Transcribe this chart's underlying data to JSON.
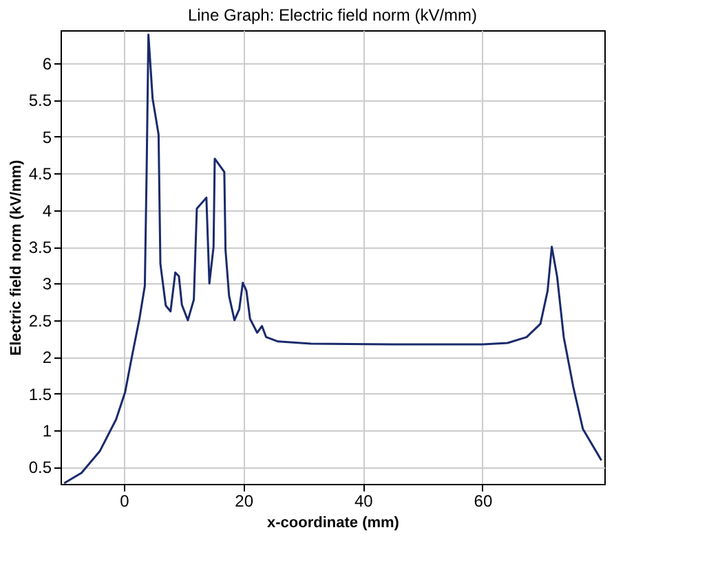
{
  "chart_data": {
    "type": "line",
    "title": "Line Graph: Electric field norm (kV/mm)",
    "xlabel": "x-coordinate (mm)",
    "ylabel": "Electric field norm (kV/mm)",
    "xlim": [
      -10.6,
      80.4
    ],
    "ylim": [
      0.27,
      6.45
    ],
    "xticks": [
      0,
      20,
      40,
      60
    ],
    "yticks": [
      0.5,
      1,
      1.5,
      2,
      2.5,
      3,
      3.5,
      4,
      4.5,
      5,
      5.5,
      6
    ],
    "grid": true,
    "line_style": "solid",
    "series": [
      {
        "color": "#1a2a6c",
        "x": [
          -10,
          -7.1,
          -4,
          -1.3,
          0.2,
          1.4,
          2.6,
          3.5,
          3.8,
          4.1,
          4.8,
          5.8,
          6.1,
          7.0,
          7.8,
          8.6,
          9.2,
          9.7,
          10.7,
          11.7,
          12.2,
          13.6,
          13.8,
          14.3,
          15.0,
          15.2,
          16.8,
          17.0,
          17.6,
          18.5,
          19.3,
          19.9,
          20.5,
          21.1,
          22.3,
          23.1,
          23.8,
          25.8,
          31.3,
          45,
          60,
          64.2,
          67.4,
          69.7,
          70.9,
          71.6,
          72.5,
          73.6,
          75.2,
          76.8,
          79.9
        ],
        "values": [
          0.28,
          0.42,
          0.72,
          1.15,
          1.52,
          2.03,
          2.52,
          2.97,
          4.52,
          6.39,
          5.52,
          5.03,
          3.27,
          2.7,
          2.62,
          3.15,
          3.1,
          2.71,
          2.5,
          2.78,
          4.02,
          4.15,
          4.17,
          3.0,
          3.5,
          4.7,
          4.52,
          3.46,
          2.83,
          2.5,
          2.65,
          3.01,
          2.9,
          2.52,
          2.33,
          2.42,
          2.27,
          2.21,
          2.18,
          2.17,
          2.17,
          2.19,
          2.27,
          2.45,
          2.9,
          3.5,
          3.09,
          2.27,
          1.59,
          1.02,
          0.59
        ]
      }
    ]
  }
}
